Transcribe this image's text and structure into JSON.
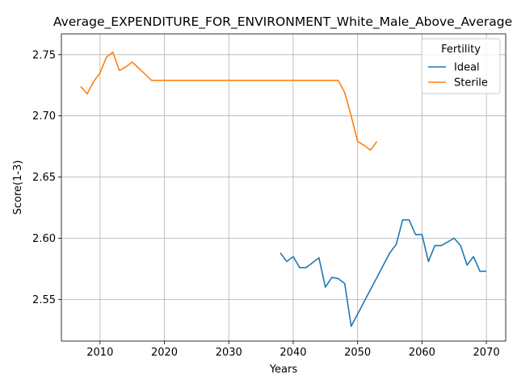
{
  "chart_data": {
    "type": "line",
    "title": "Average_EXPENDITURE_FOR_ENVIRONMENT_White_Male_Above_Average",
    "xlabel": "Years",
    "ylabel": "Score(1-3)",
    "xlim": [
      2004,
      2073
    ],
    "ylim": [
      2.516,
      2.767
    ],
    "xticks": [
      2010,
      2020,
      2030,
      2040,
      2050,
      2060,
      2070
    ],
    "yticks": [
      2.55,
      2.6,
      2.65,
      2.7,
      2.75
    ],
    "xtick_labels": [
      "2010",
      "2020",
      "2030",
      "2040",
      "2050",
      "2060",
      "2070"
    ],
    "ytick_labels": [
      "2.55",
      "2.60",
      "2.65",
      "2.70",
      "2.75"
    ],
    "grid": true,
    "legend": {
      "title": "Fertility",
      "placement": "top-right"
    },
    "series": [
      {
        "name": "Ideal",
        "color": "#1f77b4",
        "x": [
          2038,
          2039,
          2040,
          2041,
          2042,
          2043,
          2044,
          2045,
          2046,
          2047,
          2048,
          2049,
          2050,
          2051,
          2052,
          2053,
          2054,
          2055,
          2056,
          2057,
          2058,
          2059,
          2060,
          2061,
          2062,
          2063,
          2064,
          2065,
          2066,
          2067,
          2068,
          2069,
          2070
        ],
        "y": [
          2.588,
          2.581,
          2.585,
          2.576,
          2.576,
          2.58,
          2.584,
          2.56,
          2.568,
          2.567,
          2.563,
          2.528,
          2.538,
          2.548,
          2.558,
          2.568,
          2.578,
          2.588,
          2.595,
          2.615,
          2.615,
          2.603,
          2.603,
          2.581,
          2.594,
          2.594,
          2.597,
          2.6,
          2.594,
          2.578,
          2.585,
          2.573,
          2.573
        ]
      },
      {
        "name": "Sterile",
        "color": "#ff7f0e",
        "x": [
          2007,
          2008,
          2009,
          2010,
          2011,
          2012,
          2013,
          2014,
          2015,
          2016,
          2017,
          2018,
          2019,
          2020,
          2025,
          2030,
          2035,
          2040,
          2045,
          2046,
          2047,
          2048,
          2049,
          2050,
          2051,
          2052,
          2053
        ],
        "y": [
          2.724,
          2.718,
          2.728,
          2.735,
          2.748,
          2.752,
          2.737,
          2.74,
          2.744,
          2.739,
          2.734,
          2.729,
          2.729,
          2.729,
          2.729,
          2.729,
          2.729,
          2.729,
          2.729,
          2.729,
          2.729,
          2.719,
          2.7,
          2.679,
          2.676,
          2.672,
          2.679
        ]
      }
    ]
  }
}
